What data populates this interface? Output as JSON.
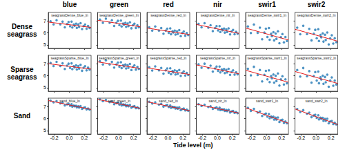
{
  "chart_data": {
    "type": "scatter",
    "xlabel": "Tide level (m)",
    "column_labels": [
      "blue",
      "green",
      "red",
      "nir",
      "swir1",
      "swir2"
    ],
    "row_labels": [
      "Dense seagrass",
      "Sparse seagrass",
      "Sand"
    ],
    "x": [
      -0.25,
      -0.21,
      -0.17,
      -0.12,
      -0.09,
      -0.06,
      -0.03,
      -0.01,
      0.01,
      0.03,
      0.04,
      0.06,
      0.07,
      0.09,
      0.1,
      0.12,
      0.13,
      0.15,
      0.17,
      0.19,
      0.21,
      0.23,
      0.25,
      0.27
    ],
    "xlim": [
      -0.28,
      0.29
    ],
    "xticks": [
      -0.2,
      {
        "value": 0,
        "label": "0.0"
      },
      0.2
    ],
    "ylim": [
      4.7,
      7.7
    ],
    "yticks": [
      5,
      6,
      7
    ],
    "grid": false,
    "panels": [
      {
        "title": "seagrassDense_blue_ln",
        "series": [
          {
            "type": "scatter",
            "color": "#1f77b4",
            "values": [
              6.97,
              6.7,
              7.05,
              6.71,
              6.93,
              6.46,
              6.73,
              6.9,
              6.55,
              6.93,
              6.44,
              6.69,
              6.59,
              6.76,
              6.42,
              6.7,
              6.49,
              6.8,
              6.31,
              6.56,
              6.69,
              6.35,
              6.57,
              6.41
            ]
          },
          {
            "type": "line",
            "color": "#e41a1c",
            "x": [
              -0.28,
              0.29
            ],
            "values": [
              6.9,
              6.45
            ]
          }
        ]
      },
      {
        "title": "seagrassDense_green_ln",
        "series": [
          {
            "type": "scatter",
            "color": "#1f77b4",
            "values": [
              7.11,
              6.83,
              7.18,
              6.84,
              7.05,
              6.57,
              6.84,
              7.0,
              6.65,
              7.02,
              6.53,
              6.78,
              6.68,
              6.84,
              6.5,
              6.78,
              6.56,
              6.88,
              6.38,
              6.63,
              6.76,
              6.41,
              6.63,
              6.46
            ]
          },
          {
            "type": "line",
            "color": "#e41a1c",
            "x": [
              -0.28,
              0.29
            ],
            "values": [
              7.05,
              6.5
            ]
          }
        ]
      },
      {
        "title": "seagrassDense_red_ln",
        "series": [
          {
            "type": "scatter",
            "color": "#1f77b4",
            "values": [
              6.46,
              6.18,
              6.53,
              6.19,
              6.4,
              5.92,
              6.19,
              6.35,
              6.0,
              6.37,
              5.88,
              6.13,
              6.03,
              6.19,
              5.85,
              6.13,
              5.91,
              6.23,
              5.73,
              5.98,
              6.11,
              5.76,
              5.98,
              5.81
            ]
          },
          {
            "type": "line",
            "color": "#e41a1c",
            "x": [
              -0.28,
              0.29
            ],
            "values": [
              6.4,
              5.85
            ]
          }
        ]
      },
      {
        "title": "seagrassDense_nir_ln",
        "series": [
          {
            "type": "scatter",
            "color": "#1f77b4",
            "values": [
              6.75,
              6.46,
              6.8,
              6.43,
              6.63,
              6.14,
              6.4,
              6.56,
              6.2,
              6.56,
              6.07,
              6.31,
              6.21,
              6.36,
              6.02,
              6.29,
              6.07,
              6.37,
              5.87,
              6.11,
              6.24,
              5.88,
              6.09,
              5.92
            ]
          },
          {
            "type": "line",
            "color": "#e41a1c",
            "x": [
              -0.28,
              0.29
            ],
            "values": [
              6.7,
              5.95
            ]
          }
        ]
      },
      {
        "title": "seagrassDense_swir1_ln",
        "series": [
          {
            "type": "scatter",
            "color": "#1f77b4",
            "values": [
              6.53,
              5.98,
              6.69,
              6.0,
              6.43,
              5.47,
              6.02,
              6.35,
              5.65,
              6.4,
              5.42,
              5.92,
              5.73,
              6.05,
              5.37,
              5.94,
              5.5,
              6.13,
              5.13,
              5.64,
              5.9,
              5.21,
              5.65,
              5.32
            ]
          },
          {
            "type": "line",
            "color": "#e41a1c",
            "x": [
              -0.28,
              0.29
            ],
            "values": [
              6.4,
              5.4
            ]
          }
        ]
      },
      {
        "title": "seagrassDense_swir2_ln",
        "series": [
          {
            "type": "scatter",
            "color": "#1f77b4",
            "values": [
              6.43,
              5.88,
              6.59,
              5.9,
              6.33,
              5.37,
              5.92,
              6.25,
              5.55,
              6.3,
              5.32,
              5.82,
              5.63,
              5.95,
              5.27,
              5.84,
              5.4,
              6.03,
              5.03,
              5.54,
              5.8,
              5.11,
              5.55,
              5.22
            ]
          },
          {
            "type": "line",
            "color": "#e41a1c",
            "x": [
              -0.28,
              0.29
            ],
            "values": [
              6.3,
              5.3
            ]
          }
        ]
      },
      {
        "title": "seagrassSparse_blue_ln",
        "series": [
          {
            "type": "scatter",
            "color": "#1f77b4",
            "values": [
              7.07,
              6.8,
              7.15,
              6.81,
              7.03,
              6.56,
              6.83,
              7.0,
              6.65,
              7.03,
              6.54,
              6.79,
              6.69,
              6.86,
              6.52,
              6.8,
              6.59,
              6.9,
              6.41,
              6.66,
              6.79,
              6.45,
              6.67,
              6.51
            ]
          },
          {
            "type": "line",
            "color": "#e41a1c",
            "x": [
              -0.28,
              0.29
            ],
            "values": [
              7.0,
              6.55
            ]
          }
        ]
      },
      {
        "title": "seagrassSparse_green_ln",
        "series": [
          {
            "type": "scatter",
            "color": "#1f77b4",
            "values": [
              7.21,
              6.93,
              7.28,
              6.94,
              7.15,
              6.67,
              6.94,
              7.1,
              6.75,
              7.12,
              6.63,
              6.88,
              6.78,
              6.94,
              6.6,
              6.88,
              6.66,
              6.98,
              6.48,
              6.73,
              6.86,
              6.51,
              6.73,
              6.56
            ]
          },
          {
            "type": "line",
            "color": "#e41a1c",
            "x": [
              -0.28,
              0.29
            ],
            "values": [
              7.15,
              6.6
            ]
          }
        ]
      },
      {
        "title": "seagrassSparse_red_ln",
        "series": [
          {
            "type": "scatter",
            "color": "#1f77b4",
            "values": [
              6.71,
              6.43,
              6.78,
              6.44,
              6.65,
              6.17,
              6.44,
              6.6,
              6.25,
              6.62,
              6.13,
              6.38,
              6.28,
              6.44,
              6.1,
              6.38,
              6.16,
              6.48,
              5.98,
              6.23,
              6.36,
              6.01,
              6.23,
              6.06
            ]
          },
          {
            "type": "line",
            "color": "#e41a1c",
            "x": [
              -0.28,
              0.29
            ],
            "values": [
              6.65,
              6.1
            ]
          }
        ]
      },
      {
        "title": "seagrassSparse_nir_ln",
        "series": [
          {
            "type": "scatter",
            "color": "#1f77b4",
            "values": [
              6.95,
              6.66,
              7.0,
              6.63,
              6.83,
              6.34,
              6.6,
              6.76,
              6.4,
              6.76,
              6.27,
              6.51,
              6.41,
              6.56,
              6.22,
              6.49,
              6.27,
              6.57,
              6.07,
              6.31,
              6.44,
              6.08,
              6.29,
              6.12
            ]
          },
          {
            "type": "line",
            "color": "#e41a1c",
            "x": [
              -0.28,
              0.29
            ],
            "values": [
              6.9,
              6.15
            ]
          }
        ]
      },
      {
        "title": "seagrassSparse_swir1_ln",
        "series": [
          {
            "type": "scatter",
            "color": "#1f77b4",
            "values": [
              6.58,
              6.03,
              6.74,
              6.05,
              6.48,
              5.52,
              6.07,
              6.4,
              5.7,
              6.45,
              5.47,
              5.97,
              5.78,
              6.1,
              5.42,
              5.99,
              5.55,
              6.18,
              5.18,
              5.69,
              5.95,
              5.26,
              5.7,
              5.37
            ]
          },
          {
            "type": "line",
            "color": "#e41a1c",
            "x": [
              -0.28,
              0.29
            ],
            "values": [
              6.45,
              5.45
            ]
          }
        ]
      },
      {
        "title": "seagrassSparse_swir2_ln",
        "series": [
          {
            "type": "scatter",
            "color": "#1f77b4",
            "values": [
              6.48,
              5.93,
              6.64,
              5.95,
              6.38,
              5.42,
              5.97,
              6.3,
              5.6,
              6.35,
              5.37,
              5.87,
              5.68,
              6.0,
              5.32,
              5.89,
              5.45,
              6.08,
              5.08,
              5.59,
              5.85,
              5.16,
              5.6,
              5.27
            ]
          },
          {
            "type": "line",
            "color": "#e41a1c",
            "x": [
              -0.28,
              0.29
            ],
            "values": [
              6.35,
              5.35
            ]
          }
        ]
      },
      {
        "title": "sand_blue_ln",
        "series": [
          {
            "type": "scatter",
            "color": "#1f77b4",
            "values": [
              7.5,
              7.35,
              7.45,
              7.27,
              7.32,
              7.1,
              7.18,
              7.23,
              7.07,
              7.2,
              7.0,
              7.08,
              7.03,
              7.07,
              6.93,
              7.02,
              6.92,
              7.03,
              6.81,
              6.89,
              6.93,
              6.77,
              6.84,
              6.75
            ]
          },
          {
            "type": "line",
            "color": "#e41a1c",
            "x": [
              -0.28,
              0.29
            ],
            "values": [
              7.5,
              6.75
            ]
          }
        ]
      },
      {
        "title": "sand_green_ln",
        "series": [
          {
            "type": "scatter",
            "color": "#1f77b4",
            "values": [
              7.6,
              7.45,
              7.55,
              7.37,
              7.42,
              7.2,
              7.28,
              7.33,
              7.17,
              7.3,
              7.1,
              7.18,
              7.13,
              7.17,
              7.03,
              7.12,
              7.02,
              7.13,
              6.91,
              6.99,
              7.03,
              6.87,
              6.94,
              6.85
            ]
          },
          {
            "type": "line",
            "color": "#e41a1c",
            "x": [
              -0.28,
              0.29
            ],
            "values": [
              7.6,
              6.85
            ]
          }
        ]
      },
      {
        "title": "sand_red_ln",
        "series": [
          {
            "type": "scatter",
            "color": "#1f77b4",
            "values": [
              7.4,
              7.25,
              7.35,
              7.17,
              7.22,
              7.0,
              7.08,
              7.13,
              6.97,
              7.1,
              6.9,
              6.98,
              6.93,
              6.97,
              6.83,
              6.92,
              6.82,
              6.93,
              6.71,
              6.79,
              6.83,
              6.67,
              6.74,
              6.65
            ]
          },
          {
            "type": "line",
            "color": "#e41a1c",
            "x": [
              -0.28,
              0.29
            ],
            "values": [
              7.4,
              6.65
            ]
          }
        ]
      },
      {
        "title": "sand_nir_ln",
        "series": [
          {
            "type": "scatter",
            "color": "#1f77b4",
            "values": [
              7.2,
              7.05,
              7.15,
              6.97,
              7.02,
              6.8,
              6.88,
              6.93,
              6.77,
              6.9,
              6.7,
              6.78,
              6.73,
              6.77,
              6.63,
              6.72,
              6.62,
              6.73,
              6.51,
              6.59,
              6.63,
              6.47,
              6.54,
              6.45
            ]
          },
          {
            "type": "line",
            "color": "#e41a1c",
            "x": [
              -0.28,
              0.29
            ],
            "values": [
              7.2,
              6.45
            ]
          }
        ]
      },
      {
        "title": "sand_swir1_ln",
        "series": [
          {
            "type": "scatter",
            "color": "#1f77b4",
            "values": [
              6.89,
              6.64,
              6.81,
              6.5,
              6.59,
              6.22,
              6.35,
              6.42,
              6.16,
              6.37,
              6.03,
              6.17,
              6.08,
              6.16,
              5.91,
              6.07,
              5.91,
              6.08,
              5.71,
              5.85,
              5.9,
              5.64,
              5.75,
              5.61
            ]
          },
          {
            "type": "line",
            "color": "#e41a1c",
            "x": [
              -0.28,
              0.29
            ],
            "values": [
              6.9,
              5.6
            ]
          }
        ]
      },
      {
        "title": "sand_swir2_ln",
        "series": [
          {
            "type": "scatter",
            "color": "#1f77b4",
            "values": [
              6.79,
              6.54,
              6.71,
              6.4,
              6.49,
              6.12,
              6.25,
              6.32,
              6.06,
              6.27,
              5.93,
              6.07,
              5.98,
              6.06,
              5.81,
              5.97,
              5.81,
              5.98,
              5.61,
              5.75,
              5.8,
              5.54,
              5.65,
              5.51
            ]
          },
          {
            "type": "line",
            "color": "#e41a1c",
            "x": [
              -0.28,
              0.29
            ],
            "values": [
              6.8,
              5.5
            ]
          }
        ]
      }
    ]
  }
}
